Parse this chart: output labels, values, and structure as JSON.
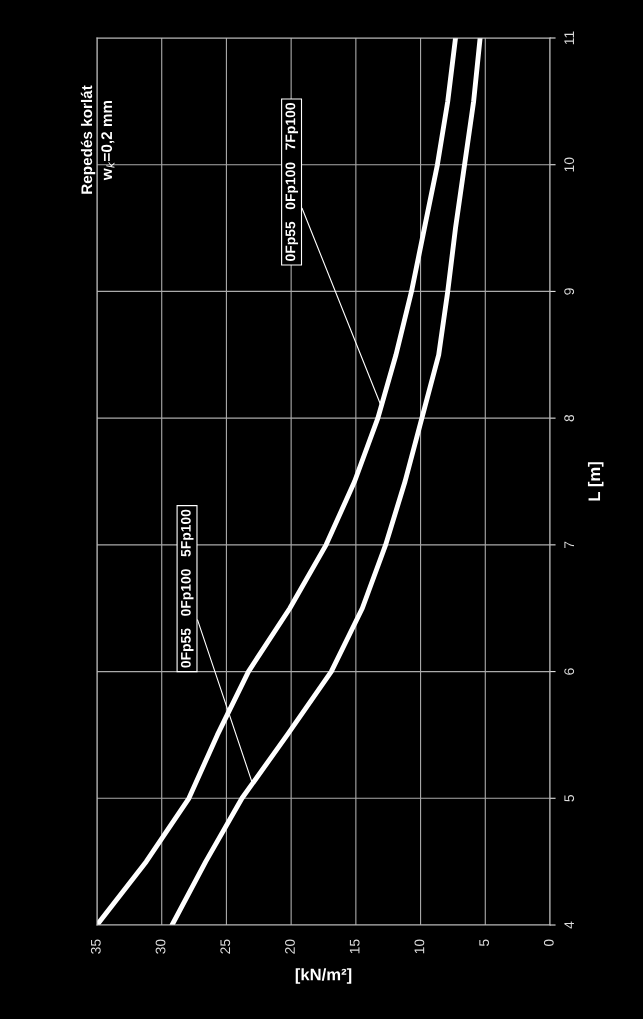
{
  "chart_data": {
    "type": "line",
    "title": "Repedés korlát",
    "subtitle": "w$_{k}$=0,2 mm",
    "xlabel": "[kN/m²]",
    "ylabel": "L [m]",
    "series": [
      {
        "color": "#ffffff",
        "x": [
          35,
          31.2,
          27.9,
          25.7,
          23.3,
          20.1,
          17.3,
          15.1,
          13.3,
          11.9,
          10.7,
          9.7,
          8.7,
          7.9,
          7.3
        ],
        "values": [
          4,
          4.5,
          5,
          5.5,
          6,
          6.5,
          7,
          7.5,
          8,
          8.5,
          9,
          9.5,
          10,
          10.5,
          11
        ]
      },
      {
        "color": "#ffffff",
        "x": [
          29.2,
          26.6,
          23.8,
          20.3,
          16.9,
          14.5,
          12.7,
          11.2,
          9.9,
          8.6,
          7.9,
          7.3,
          6.6,
          5.9,
          5.4
        ],
        "values": [
          4,
          4.5,
          5,
          5.5,
          6,
          6.5,
          7,
          7.5,
          8,
          8.5,
          9,
          9.5,
          10,
          10.5,
          11
        ]
      }
    ],
    "xlim": [
      35,
      0
    ],
    "xticks": [
      35,
      30,
      25,
      20,
      15,
      10,
      5,
      0
    ],
    "ylim": [
      4,
      11
    ],
    "yticks": [
      4,
      5,
      6,
      7,
      8,
      9,
      10,
      11
    ],
    "grid": true,
    "marker": "none",
    "line_style": "solid",
    "annotations": [
      {
        "text": "0Fp55   0Fp100   5Fp100",
        "x": 23.0,
        "y": 5.12
      },
      {
        "text": "0Fp55   0Fp100   7Fp100",
        "x": 13.1,
        "y": 8.11
      }
    ]
  }
}
